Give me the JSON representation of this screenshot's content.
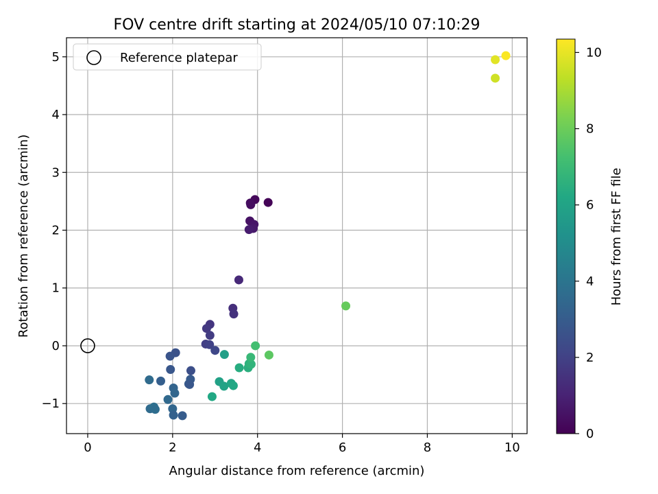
{
  "chart_data": {
    "type": "scatter",
    "title": "FOV centre drift starting at 2024/05/10 07:10:29",
    "xlabel": "Angular distance from reference (arcmin)",
    "ylabel": "Rotation from reference (arcmin)",
    "xlim": [
      -0.5,
      10.35
    ],
    "ylim": [
      -1.52,
      5.33
    ],
    "xticks": [
      "0",
      "2",
      "4",
      "6",
      "8",
      "10"
    ],
    "yticks": [
      "−1",
      "0",
      "1",
      "2",
      "3",
      "4",
      "5"
    ],
    "grid": true,
    "legend": {
      "placement": "top-left",
      "entries": [
        "Reference platepar"
      ]
    },
    "reference_point": {
      "x": 0,
      "y": 0
    },
    "colorbar": {
      "label": "Hours from first FF file",
      "range": [
        0,
        10.35
      ],
      "ticks": [
        "0",
        "2",
        "4",
        "6",
        "8",
        "10"
      ],
      "colormap": "viridis"
    },
    "points": [
      {
        "x": 9.85,
        "y": 5.02,
        "h": 10.3
      },
      {
        "x": 9.6,
        "y": 4.95,
        "h": 9.9
      },
      {
        "x": 9.6,
        "y": 4.63,
        "h": 9.6
      },
      {
        "x": 4.25,
        "y": 2.48,
        "h": 0.1
      },
      {
        "x": 3.94,
        "y": 2.53,
        "h": 0.2
      },
      {
        "x": 3.83,
        "y": 2.47,
        "h": 0.3
      },
      {
        "x": 3.84,
        "y": 2.44,
        "h": 0.35
      },
      {
        "x": 3.82,
        "y": 2.16,
        "h": 0.5
      },
      {
        "x": 3.92,
        "y": 2.1,
        "h": 0.6
      },
      {
        "x": 3.9,
        "y": 2.03,
        "h": 0.7
      },
      {
        "x": 3.8,
        "y": 2.01,
        "h": 0.8
      },
      {
        "x": 3.56,
        "y": 1.14,
        "h": 1.2
      },
      {
        "x": 3.42,
        "y": 0.65,
        "h": 1.4
      },
      {
        "x": 3.44,
        "y": 0.55,
        "h": 1.5
      },
      {
        "x": 2.88,
        "y": 0.37,
        "h": 1.6
      },
      {
        "x": 2.8,
        "y": 0.3,
        "h": 1.7
      },
      {
        "x": 2.88,
        "y": 0.18,
        "h": 1.8
      },
      {
        "x": 2.78,
        "y": 0.03,
        "h": 1.9
      },
      {
        "x": 2.87,
        "y": 0.02,
        "h": 2.0
      },
      {
        "x": 3.0,
        "y": -0.08,
        "h": 2.2
      },
      {
        "x": 2.07,
        "y": -0.12,
        "h": 2.6
      },
      {
        "x": 1.94,
        "y": -0.18,
        "h": 2.7
      },
      {
        "x": 2.43,
        "y": -0.43,
        "h": 2.5
      },
      {
        "x": 1.95,
        "y": -0.41,
        "h": 2.8
      },
      {
        "x": 2.42,
        "y": -0.58,
        "h": 2.9
      },
      {
        "x": 2.38,
        "y": -0.66,
        "h": 3.0
      },
      {
        "x": 2.4,
        "y": -0.67,
        "h": 2.8
      },
      {
        "x": 1.72,
        "y": -0.61,
        "h": 3.1
      },
      {
        "x": 1.45,
        "y": -0.59,
        "h": 3.6
      },
      {
        "x": 2.02,
        "y": -0.73,
        "h": 3.3
      },
      {
        "x": 2.05,
        "y": -0.82,
        "h": 3.4
      },
      {
        "x": 1.89,
        "y": -0.93,
        "h": 3.5
      },
      {
        "x": 1.47,
        "y": -1.09,
        "h": 3.6
      },
      {
        "x": 1.56,
        "y": -1.06,
        "h": 3.8
      },
      {
        "x": 1.59,
        "y": -1.1,
        "h": 3.7
      },
      {
        "x": 2.0,
        "y": -1.09,
        "h": 3.4
      },
      {
        "x": 2.02,
        "y": -1.2,
        "h": 3.2
      },
      {
        "x": 2.23,
        "y": -1.21,
        "h": 3.0
      },
      {
        "x": 3.22,
        "y": -0.15,
        "h": 5.8
      },
      {
        "x": 3.1,
        "y": -0.62,
        "h": 5.9
      },
      {
        "x": 3.21,
        "y": -0.7,
        "h": 6.0
      },
      {
        "x": 3.38,
        "y": -0.65,
        "h": 6.1
      },
      {
        "x": 3.43,
        "y": -0.69,
        "h": 6.2
      },
      {
        "x": 2.93,
        "y": -0.88,
        "h": 6.2
      },
      {
        "x": 3.57,
        "y": -0.38,
        "h": 6.4
      },
      {
        "x": 3.78,
        "y": -0.38,
        "h": 6.5
      },
      {
        "x": 3.8,
        "y": -0.31,
        "h": 6.6
      },
      {
        "x": 3.85,
        "y": -0.32,
        "h": 6.7
      },
      {
        "x": 3.84,
        "y": -0.2,
        "h": 6.9
      },
      {
        "x": 3.95,
        "y": 0.0,
        "h": 7.2
      },
      {
        "x": 4.27,
        "y": -0.16,
        "h": 7.7
      },
      {
        "x": 6.08,
        "y": 0.69,
        "h": 7.9
      }
    ]
  }
}
